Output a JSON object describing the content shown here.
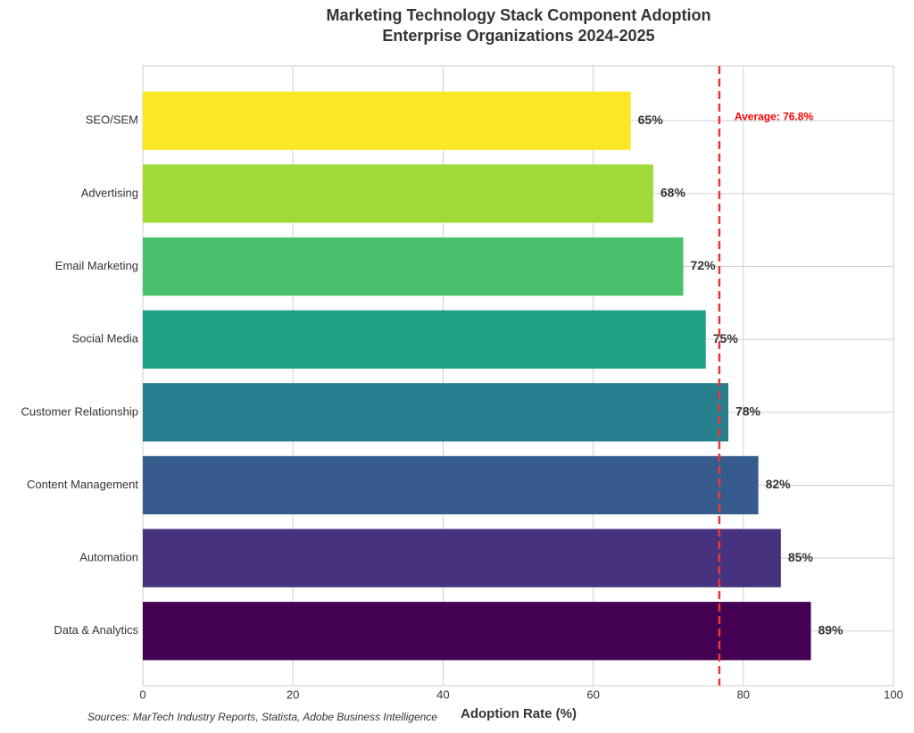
{
  "chart_data": {
    "type": "hbar",
    "title": "Marketing Technology Stack Component Adoption",
    "subtitle": "Enterprise Organizations 2024-2025",
    "x_label": "Adoption Rate (%)",
    "source": "Sources: MarTech Industry Reports, Statista, Adobe Business Intelligence",
    "categories": [
      "SEO/SEM",
      "Advertising",
      "Email Marketing",
      "Social Media",
      "Customer Relationship",
      "Content Management",
      "Automation",
      "Data & Analytics"
    ],
    "values": [
      65,
      68,
      72,
      75,
      78,
      82,
      85,
      89
    ],
    "value_labels": [
      "65%",
      "68%",
      "72%",
      "75%",
      "78%",
      "82%",
      "85%",
      "89%"
    ],
    "colors": [
      "#fde725",
      "#a0da39",
      "#4ac16d",
      "#1fa187",
      "#277f8e",
      "#365c8d",
      "#46327e",
      "#440154"
    ],
    "average": 76.8,
    "average_label": "Average: 76.8%",
    "average_color": "#e8393a",
    "xlim": [
      0,
      100
    ],
    "xticks": [
      0,
      20,
      40,
      60,
      80,
      100
    ],
    "grid": true
  }
}
